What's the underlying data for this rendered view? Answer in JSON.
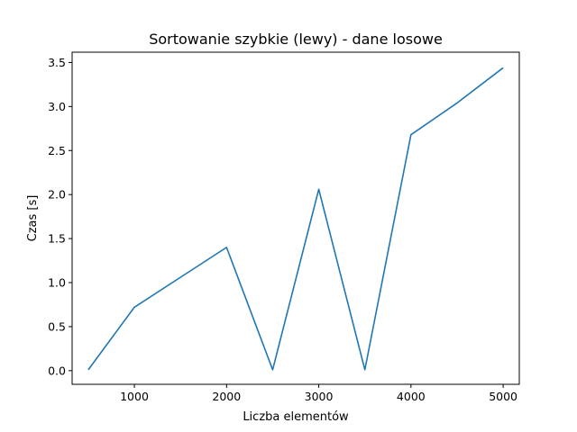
{
  "chart_data": {
    "type": "line",
    "title": "Sortowanie szybkie (lewy) - dane losowe",
    "xlabel": "Liczba elementów",
    "ylabel": "Czas [s]",
    "xlim": [
      325,
      5175
    ],
    "ylim": [
      -0.155,
      3.617
    ],
    "xticks": [
      1000,
      2000,
      3000,
      4000,
      5000
    ],
    "yticks": [
      0.0,
      0.5,
      1.0,
      1.5,
      2.0,
      2.5,
      3.0,
      3.5
    ],
    "grid": false,
    "line_color": "#1f77b4",
    "series": [
      {
        "x": [
          500,
          1000,
          1500,
          2000,
          2500,
          3000,
          3500,
          4000,
          4500,
          5000
        ],
        "y": [
          0.01,
          0.72,
          1.06,
          1.4,
          0.01,
          2.06,
          0.01,
          2.68,
          3.04,
          3.44
        ]
      }
    ]
  }
}
